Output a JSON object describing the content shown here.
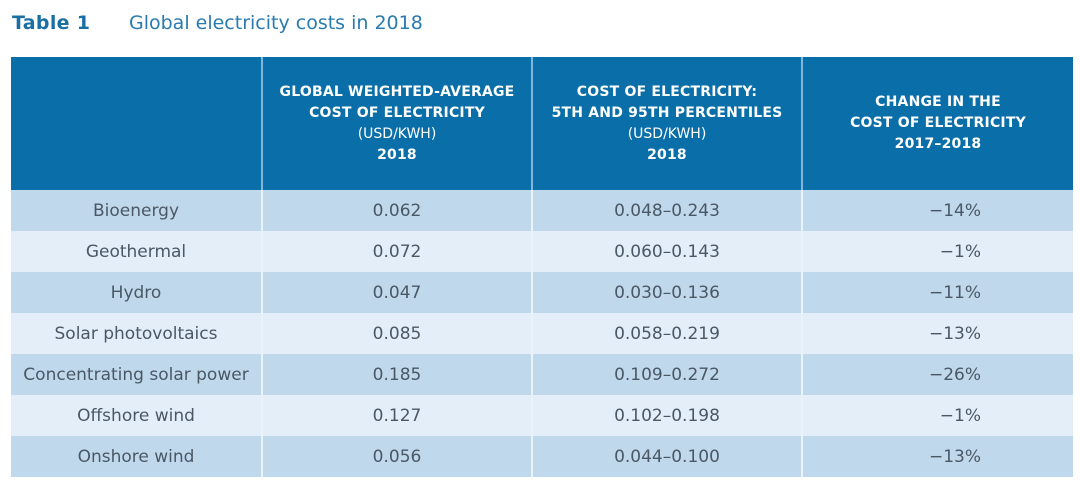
{
  "caption": {
    "label": "Table 1",
    "title": "Global electricity costs in 2018"
  },
  "colors": {
    "header_bg": "#0a6fa8",
    "header_text": "#ffffff",
    "row_dark": "#c0d8eb",
    "row_light": "#e4eef8",
    "caption_label": "#1a6fa3",
    "caption_title": "#2a7bb0",
    "body_text": "#4a5866"
  },
  "table": {
    "headers": [
      {
        "lines": [],
        "unit": "",
        "year": ""
      },
      {
        "lines": [
          "GLOBAL WEIGHTED-AVERAGE",
          "COST OF ELECTRICITY"
        ],
        "unit": "(USD/KWH)",
        "year": "2018"
      },
      {
        "lines": [
          "COST OF ELECTRICITY:",
          "5TH AND 95TH PERCENTILES"
        ],
        "unit": "(USD/KWH)",
        "year": "2018"
      },
      {
        "lines": [
          "CHANGE IN THE",
          "COST OF ELECTRICITY"
        ],
        "unit": "",
        "year": "2017–2018"
      }
    ],
    "rows": [
      {
        "technology": "Bioenergy",
        "weighted_average": "0.062",
        "percentile_range": "0.048–0.243",
        "change": "−14%"
      },
      {
        "technology": "Geothermal",
        "weighted_average": "0.072",
        "percentile_range": "0.060–0.143",
        "change": "−1%"
      },
      {
        "technology": "Hydro",
        "weighted_average": "0.047",
        "percentile_range": "0.030–0.136",
        "change": "−11%"
      },
      {
        "technology": "Solar photovoltaics",
        "weighted_average": "0.085",
        "percentile_range": "0.058–0.219",
        "change": "−13%"
      },
      {
        "technology": "Concentrating solar power",
        "weighted_average": "0.185",
        "percentile_range": "0.109–0.272",
        "change": "−26%"
      },
      {
        "technology": "Offshore wind",
        "weighted_average": "0.127",
        "percentile_range": "0.102–0.198",
        "change": "−1%"
      },
      {
        "technology": "Onshore wind",
        "weighted_average": "0.056",
        "percentile_range": "0.044–0.100",
        "change": "−13%"
      }
    ]
  }
}
